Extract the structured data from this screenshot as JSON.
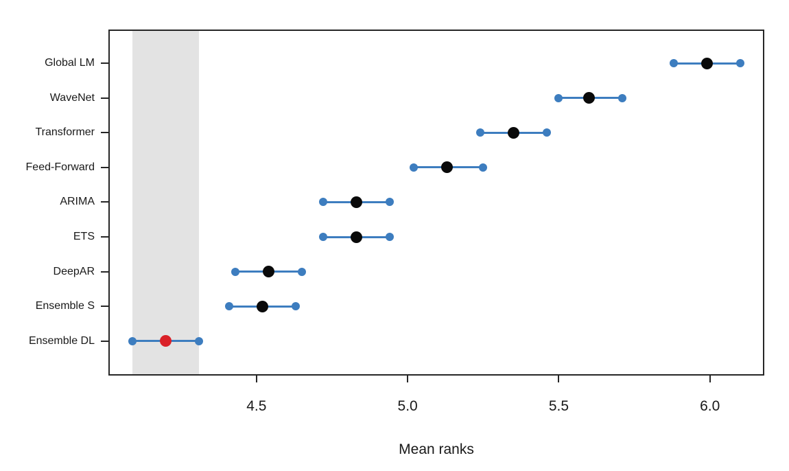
{
  "chart_data": {
    "type": "scatter",
    "subtype": "mean-ranks-interval-plot",
    "title": "",
    "xlabel": "Mean ranks",
    "ylabel": "",
    "xlim": [
      4.01,
      6.18
    ],
    "xticks": [
      4.5,
      5.0,
      5.5,
      6.0
    ],
    "xtick_labels": [
      "4.5",
      "5.0",
      "5.5",
      "6.0"
    ],
    "grid": false,
    "legend_position": "none",
    "categories": [
      "Global LM",
      "WaveNet",
      "Transformer",
      "Feed-Forward",
      "ARIMA",
      "ETS",
      "DeepAR",
      "Ensemble S",
      "Ensemble DL"
    ],
    "series": [
      {
        "name": "Global LM",
        "mean": 5.99,
        "low": 5.88,
        "high": 6.1,
        "best": false
      },
      {
        "name": "WaveNet",
        "mean": 5.6,
        "low": 5.5,
        "high": 5.71,
        "best": false
      },
      {
        "name": "Transformer",
        "mean": 5.35,
        "low": 5.24,
        "high": 5.46,
        "best": false
      },
      {
        "name": "Feed-Forward",
        "mean": 5.13,
        "low": 5.02,
        "high": 5.25,
        "best": false
      },
      {
        "name": "ARIMA",
        "mean": 4.83,
        "low": 4.72,
        "high": 4.94,
        "best": false
      },
      {
        "name": "ETS",
        "mean": 4.83,
        "low": 4.72,
        "high": 4.94,
        "best": false
      },
      {
        "name": "DeepAR",
        "mean": 4.54,
        "low": 4.43,
        "high": 4.65,
        "best": false
      },
      {
        "name": "Ensemble S",
        "mean": 4.52,
        "low": 4.41,
        "high": 4.63,
        "best": false
      },
      {
        "name": "Ensemble DL",
        "mean": 4.2,
        "low": 4.09,
        "high": 4.31,
        "best": true
      }
    ],
    "reference_band": {
      "from": 4.09,
      "to": 4.31
    },
    "colors": {
      "interval_line": "#3d7dbf",
      "endpoint_dot": "#3d7dbf",
      "mean_dot": "#0a0a0a",
      "best_mean_dot": "#da2128",
      "shaded_band": "#e3e3e3",
      "axis": "#262626",
      "text": "#191919"
    }
  }
}
